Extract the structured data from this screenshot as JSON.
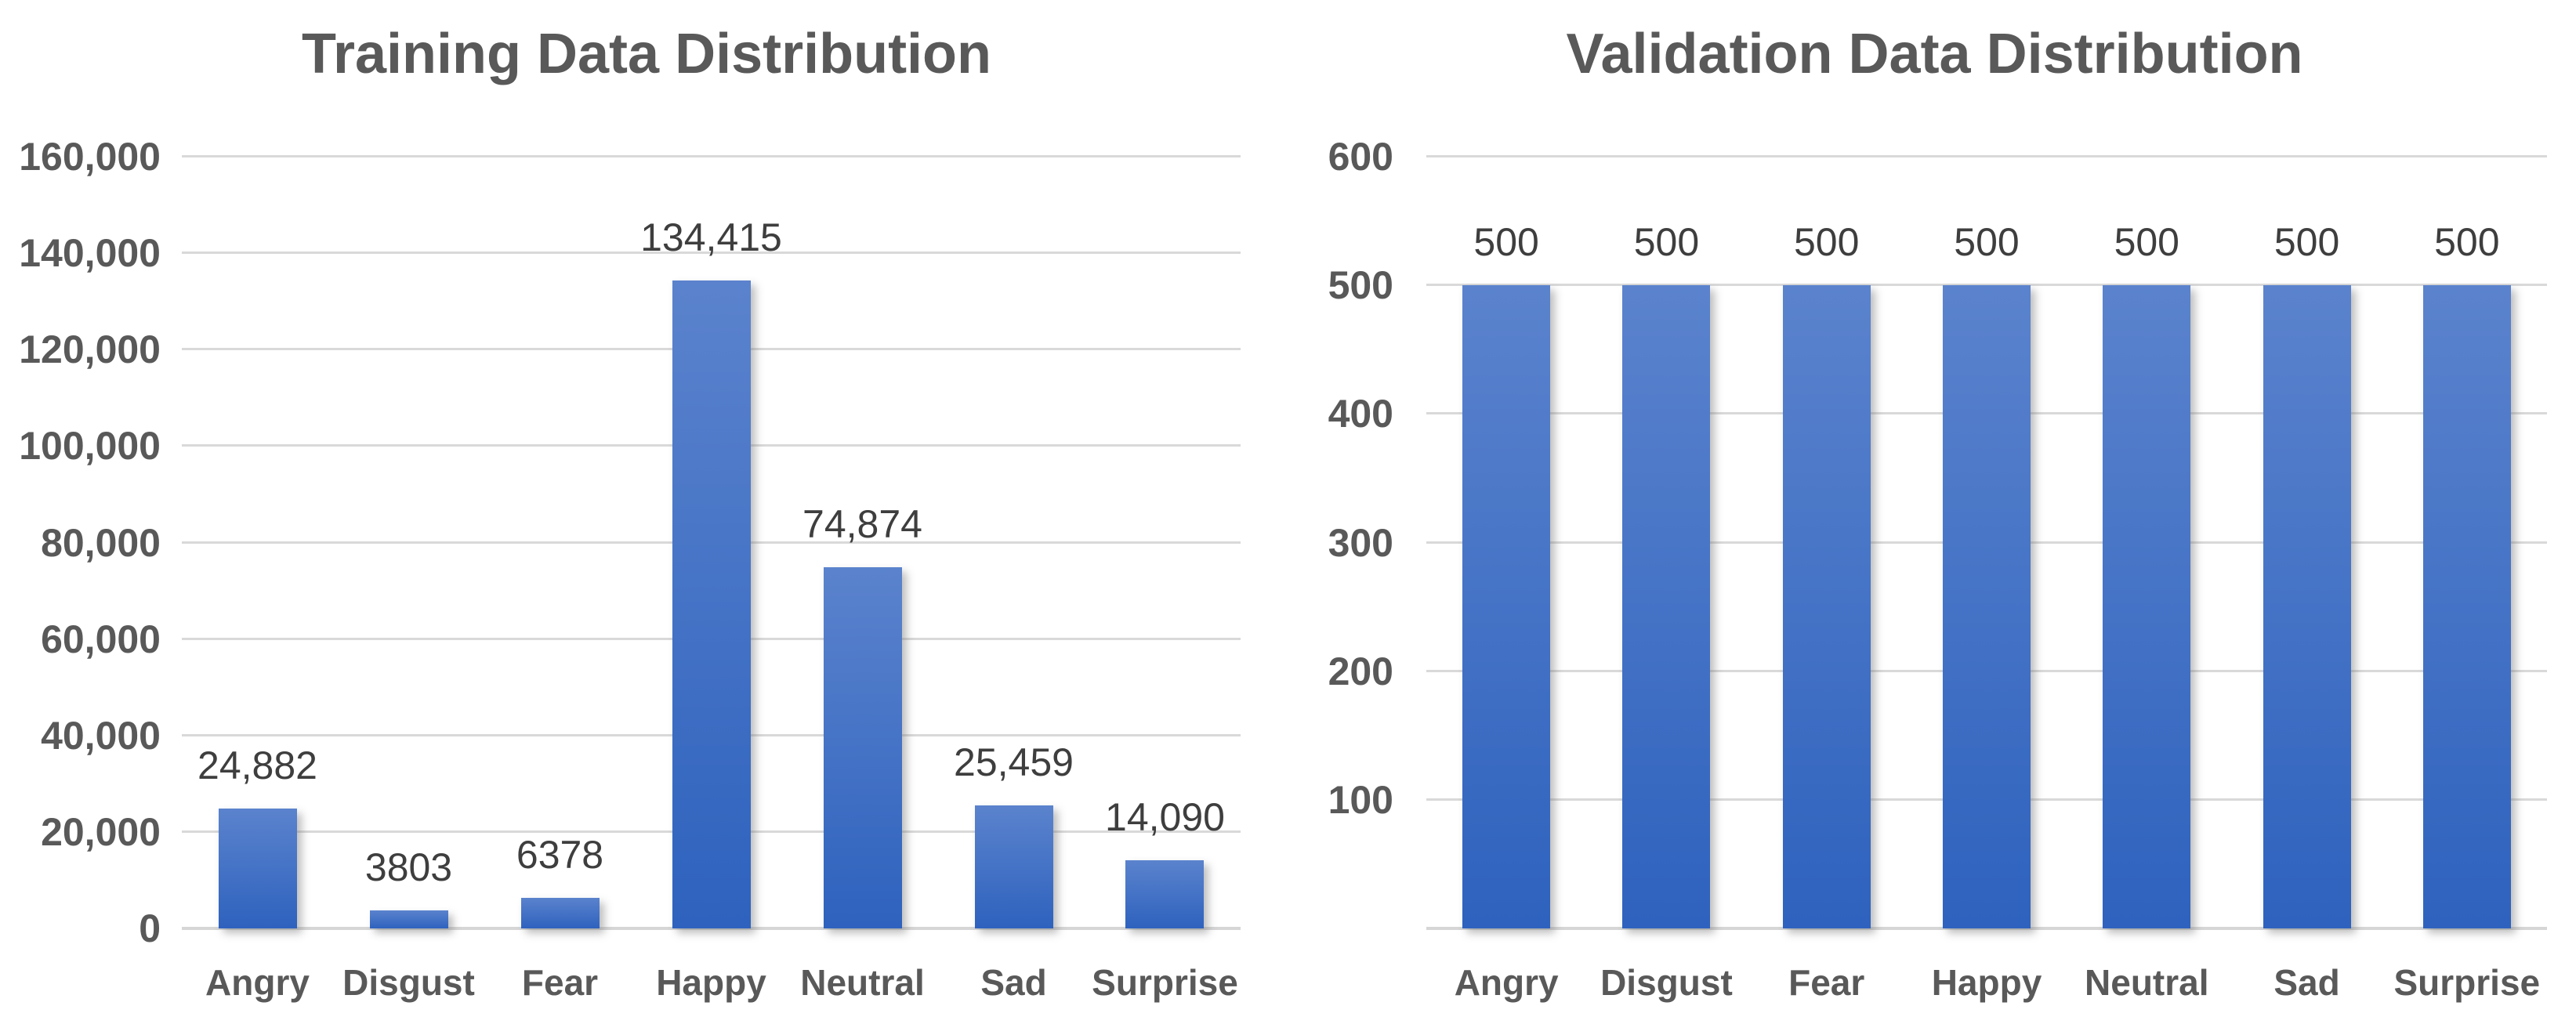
{
  "palette": {
    "bar_gradient_top": "#5B83CD",
    "bar_gradient_bottom": "#2E62BE",
    "gridline_color": "#D9D9D9",
    "title_color": "#595959",
    "axis_label_color": "#595959",
    "data_label_color": "#3E3E3E",
    "background": "#FFFFFF"
  },
  "chart_data": [
    {
      "type": "bar",
      "title": "Training Data Distribution",
      "categories": [
        "Angry",
        "Disgust",
        "Fear",
        "Happy",
        "Neutral",
        "Sad",
        "Surprise"
      ],
      "values": [
        24882,
        3803,
        6378,
        134415,
        74874,
        25459,
        14090
      ],
      "value_labels": [
        "24,882",
        "3803",
        "6378",
        "134,415",
        "74,874",
        "25,459",
        "14,090"
      ],
      "xlabel": "",
      "ylabel": "",
      "ylim": [
        0,
        160000
      ],
      "yticks": [
        {
          "value": 160000,
          "label": "160,000"
        },
        {
          "value": 140000,
          "label": "140,000"
        },
        {
          "value": 120000,
          "label": "120,000"
        },
        {
          "value": 100000,
          "label": "100,000"
        },
        {
          "value": 80000,
          "label": "80,000"
        },
        {
          "value": 60000,
          "label": "60,000"
        },
        {
          "value": 40000,
          "label": "40,000"
        },
        {
          "value": 20000,
          "label": "20,000"
        },
        {
          "value": 0,
          "label": "0"
        }
      ],
      "grid": true,
      "legend": "none"
    },
    {
      "type": "bar",
      "title": "Validation Data Distribution",
      "categories": [
        "Angry",
        "Disgust",
        "Fear",
        "Happy",
        "Neutral",
        "Sad",
        "Surprise"
      ],
      "values": [
        500,
        500,
        500,
        500,
        500,
        500,
        500
      ],
      "value_labels": [
        "500",
        "500",
        "500",
        "500",
        "500",
        "500",
        "500"
      ],
      "xlabel": "",
      "ylabel": "",
      "ylim": [
        0,
        600
      ],
      "yticks": [
        {
          "value": 600,
          "label": "600"
        },
        {
          "value": 500,
          "label": "500"
        },
        {
          "value": 400,
          "label": "400"
        },
        {
          "value": 300,
          "label": "300"
        },
        {
          "value": 200,
          "label": "200"
        },
        {
          "value": 100,
          "label": "100"
        }
      ],
      "grid": true,
      "legend": "none"
    }
  ]
}
